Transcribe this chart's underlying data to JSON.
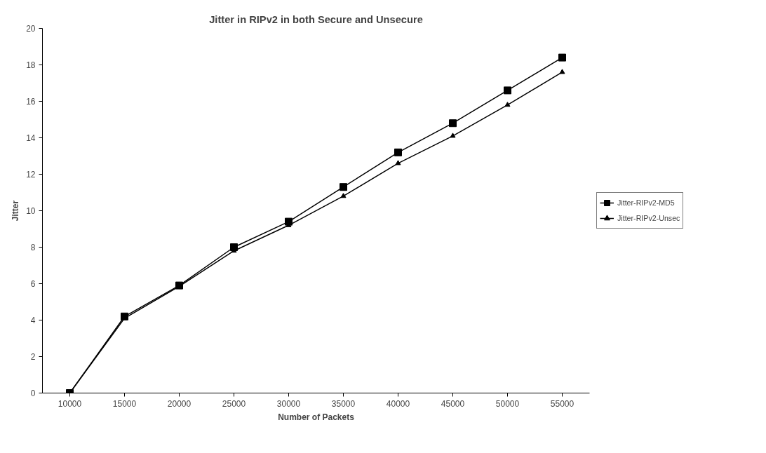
{
  "chart_data": {
    "type": "line",
    "title": "Jitter in RIPv2 in both Secure and Unsecure",
    "xlabel": "Number of Packets",
    "ylabel": "Jitter",
    "categories": [
      "10000",
      "15000",
      "20000",
      "25000",
      "30000",
      "35000",
      "40000",
      "45000",
      "50000",
      "55000"
    ],
    "series": [
      {
        "name": "Jitter-RIPv2-MD5",
        "color": "#000000",
        "marker": "square",
        "values": [
          0,
          4.2,
          5.9,
          8.0,
          9.4,
          11.3,
          13.2,
          14.8,
          16.6,
          18.4
        ]
      },
      {
        "name": "Jitter-RIPv2-Unsec",
        "color": "#000000",
        "marker": "triangle",
        "values": [
          0,
          4.1,
          5.85,
          7.8,
          9.2,
          10.8,
          12.6,
          14.1,
          15.8,
          17.6
        ]
      }
    ],
    "ylim": [
      0,
      20
    ],
    "yticks": [
      0,
      2,
      4,
      6,
      8,
      10,
      12,
      14,
      16,
      18,
      20
    ],
    "grid": false,
    "legend": "right",
    "line_style": "solid"
  }
}
